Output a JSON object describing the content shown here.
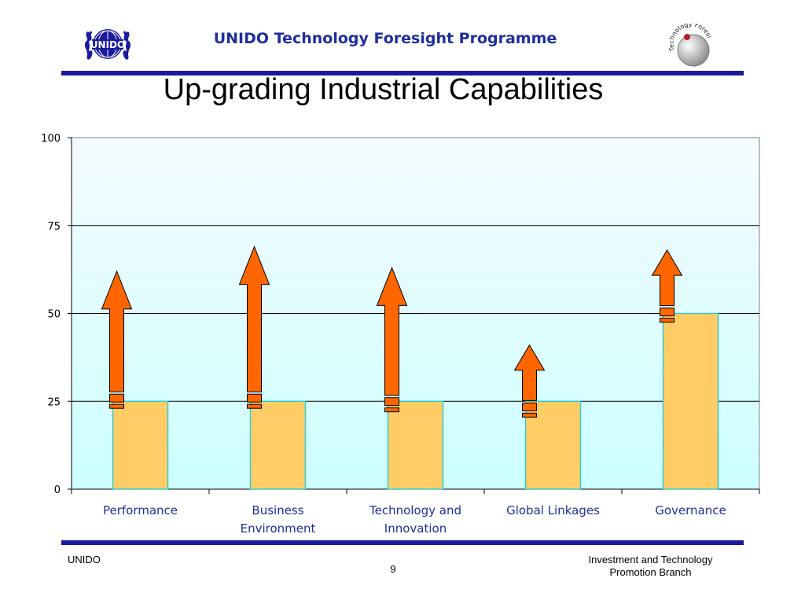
{
  "header": {
    "title": "UNIDO Technology Foresight Programme",
    "left_logo_text": "UNIDO",
    "right_logo_text": "Technology Foresight"
  },
  "slide": {
    "title": "Up-grading Industrial Capabilities"
  },
  "footer": {
    "left": "UNIDO",
    "page_number": "9",
    "right_line1": "Investment and Technology",
    "right_line2": "Promotion Branch"
  },
  "colors": {
    "brand_blue": "#1a1a9c",
    "bar_fill": "#ffcc66",
    "bar_edge": "#33cccc",
    "arrow_fill": "#ff6600",
    "plot_top": "#f5fbff",
    "plot_bottom": "#ccffff"
  },
  "chart_data": {
    "type": "bar",
    "title": "",
    "xlabel": "",
    "ylabel": "",
    "ylim": [
      0,
      100
    ],
    "yticks": [
      "0",
      "25",
      "50",
      "75",
      "100"
    ],
    "grid": true,
    "categories": [
      [
        "Performance"
      ],
      [
        "Business",
        "Environment"
      ],
      [
        "Technology and",
        "Innovation"
      ],
      [
        "Global Linkages"
      ],
      [
        "Governance"
      ]
    ],
    "values": [
      25,
      25,
      25,
      25,
      50
    ],
    "arrows": [
      {
        "from": 23,
        "to": 62
      },
      {
        "from": 23,
        "to": 69
      },
      {
        "from": 22,
        "to": 63
      },
      {
        "from": 20.5,
        "to": 41
      },
      {
        "from": 47.5,
        "to": 68
      }
    ]
  }
}
